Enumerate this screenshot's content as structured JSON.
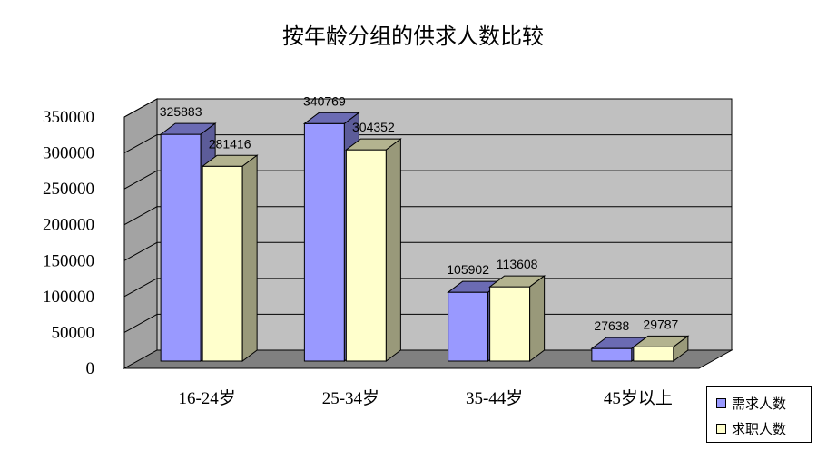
{
  "chart_data": {
    "type": "bar",
    "title": "按年龄分组的供求人数比较",
    "categories": [
      "16-24岁",
      "25-34岁",
      "35-44岁",
      "45岁以上"
    ],
    "series": [
      {
        "name": "需求人数",
        "values": [
          325883,
          340769,
          105902,
          27638
        ],
        "color": "#9999ff"
      },
      {
        "name": "求职人数",
        "values": [
          281416,
          304352,
          113608,
          29787
        ],
        "color": "#ffffcc"
      }
    ],
    "ylim": [
      0,
      350000
    ],
    "yticks": [
      "0",
      "50000",
      "100000",
      "150000",
      "200000",
      "250000",
      "300000",
      "350000"
    ],
    "data_labels": [
      [
        "325883",
        "340769",
        "105902",
        "27638"
      ],
      [
        "281416",
        "304352",
        "113608",
        "29787"
      ]
    ],
    "grid": true,
    "legend": "bottom-right",
    "wall_color": "#c0c0c0",
    "floor_color": "#808080"
  }
}
